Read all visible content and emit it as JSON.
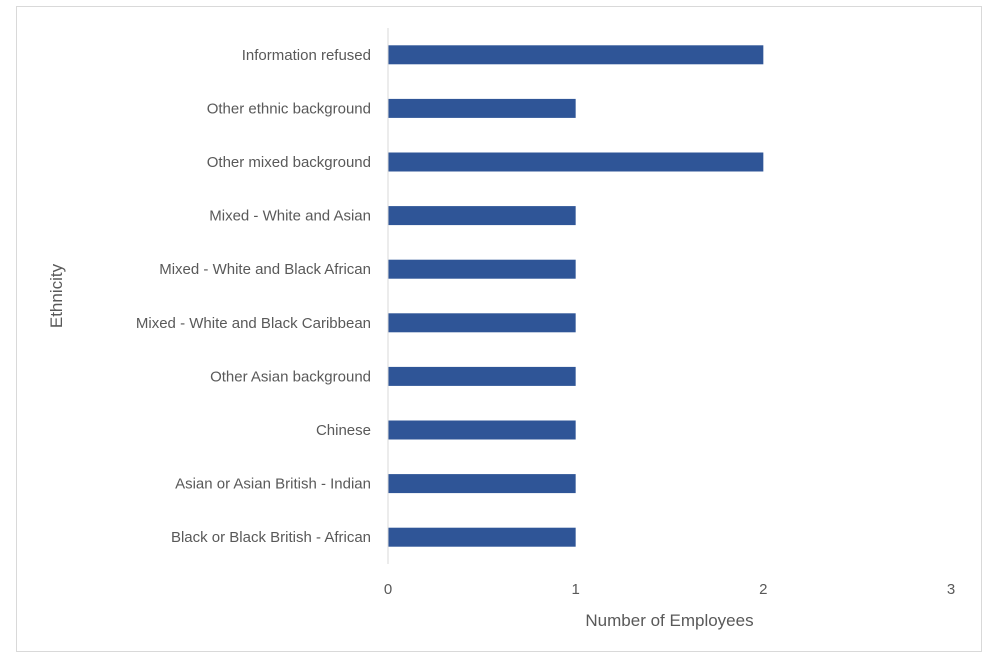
{
  "chart_data": {
    "type": "bar",
    "orientation": "horizontal",
    "categories": [
      "Information refused",
      "Other ethnic background",
      "Other mixed background",
      "Mixed - White and Asian",
      "Mixed - White and Black African",
      "Mixed - White and Black Caribbean",
      "Other Asian background",
      "Chinese",
      "Asian or Asian British - Indian",
      "Black or Black British - African"
    ],
    "values": [
      2,
      1,
      2,
      1,
      1,
      1,
      1,
      1,
      1,
      1
    ],
    "xlabel": "Number of Employees",
    "ylabel": "Ethnicity",
    "xlim": [
      0,
      3
    ],
    "xticks": [
      "0",
      "1",
      "2",
      "3"
    ],
    "grid": false,
    "legend": "none",
    "bar_color": "#2F5597",
    "axis_color": "#d9d9d9"
  }
}
